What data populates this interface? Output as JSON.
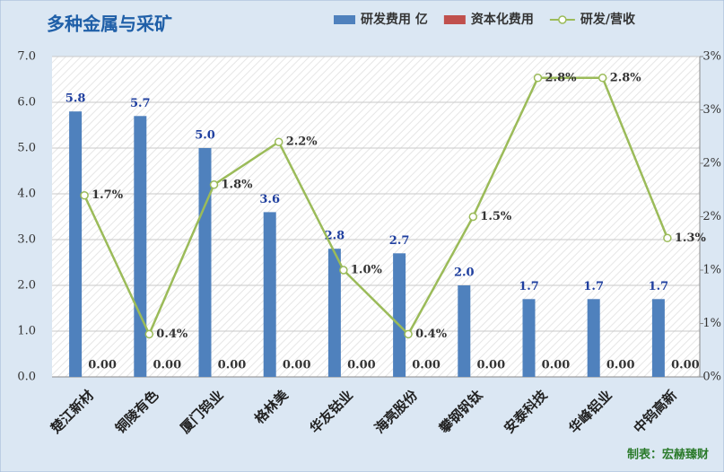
{
  "chart_data": {
    "type": "bar-line",
    "title": "多种金属与采矿",
    "footer": "制表：宏赫臻财",
    "categories": [
      "楚江新材",
      "铜陵有色",
      "厦门钨业",
      "格林美",
      "华友钴业",
      "海亮股份",
      "攀钢钒钛",
      "安泰科技",
      "华峰铝业",
      "中钨高新"
    ],
    "series": [
      {
        "name": "研发费用 亿",
        "color": "#4f81bd",
        "type": "bar",
        "values": [
          5.8,
          5.7,
          5.0,
          3.6,
          2.8,
          2.7,
          2.0,
          1.7,
          1.7,
          1.7
        ],
        "value_labels": [
          "5.8",
          "5.7",
          "5.0",
          "3.6",
          "2.8",
          "2.7",
          "2.0",
          "1.7",
          "1.7",
          "1.7"
        ]
      },
      {
        "name": "资本化费用",
        "color": "#c0504d",
        "type": "bar",
        "values": [
          0,
          0,
          0,
          0,
          0,
          0,
          0,
          0,
          0,
          0
        ],
        "value_labels": [
          "0.00",
          "0.00",
          "0.00",
          "0.00",
          "0.00",
          "0.00",
          "0.00",
          "0.00",
          "0.00",
          "0.00"
        ]
      },
      {
        "name": "研发/营收",
        "color": "#9bbb59",
        "type": "line",
        "axis": "y2",
        "values": [
          1.7,
          0.4,
          1.8,
          2.2,
          1.0,
          0.4,
          1.5,
          2.8,
          2.8,
          1.3
        ],
        "value_labels": [
          "1.7%",
          "0.4%",
          "1.8%",
          "2.2%",
          "1.0%",
          "0.4%",
          "1.5%",
          "2.8%",
          "2.8%",
          "1.3%"
        ]
      }
    ],
    "ylim": [
      0,
      7
    ],
    "yticks": [
      {
        "value": 0,
        "label": "0.0"
      },
      {
        "value": 1,
        "label": "1.0"
      },
      {
        "value": 2,
        "label": "2.0"
      },
      {
        "value": 3,
        "label": "3.0"
      },
      {
        "value": 4,
        "label": "4.0"
      },
      {
        "value": 5,
        "label": "5.0"
      },
      {
        "value": 6,
        "label": "6.0"
      },
      {
        "value": 7,
        "label": "7.0"
      }
    ],
    "y2lim": [
      0,
      3
    ],
    "y2ticks": [
      {
        "value": 0,
        "label": "0%"
      },
      {
        "value": 0.5,
        "label": "1%"
      },
      {
        "value": 1,
        "label": "1%"
      },
      {
        "value": 1.5,
        "label": "2%"
      },
      {
        "value": 2,
        "label": "2%"
      },
      {
        "value": 2.5,
        "label": "3%"
      },
      {
        "value": 3,
        "label": "3%"
      }
    ],
    "grid": true,
    "legend": "top-right"
  }
}
